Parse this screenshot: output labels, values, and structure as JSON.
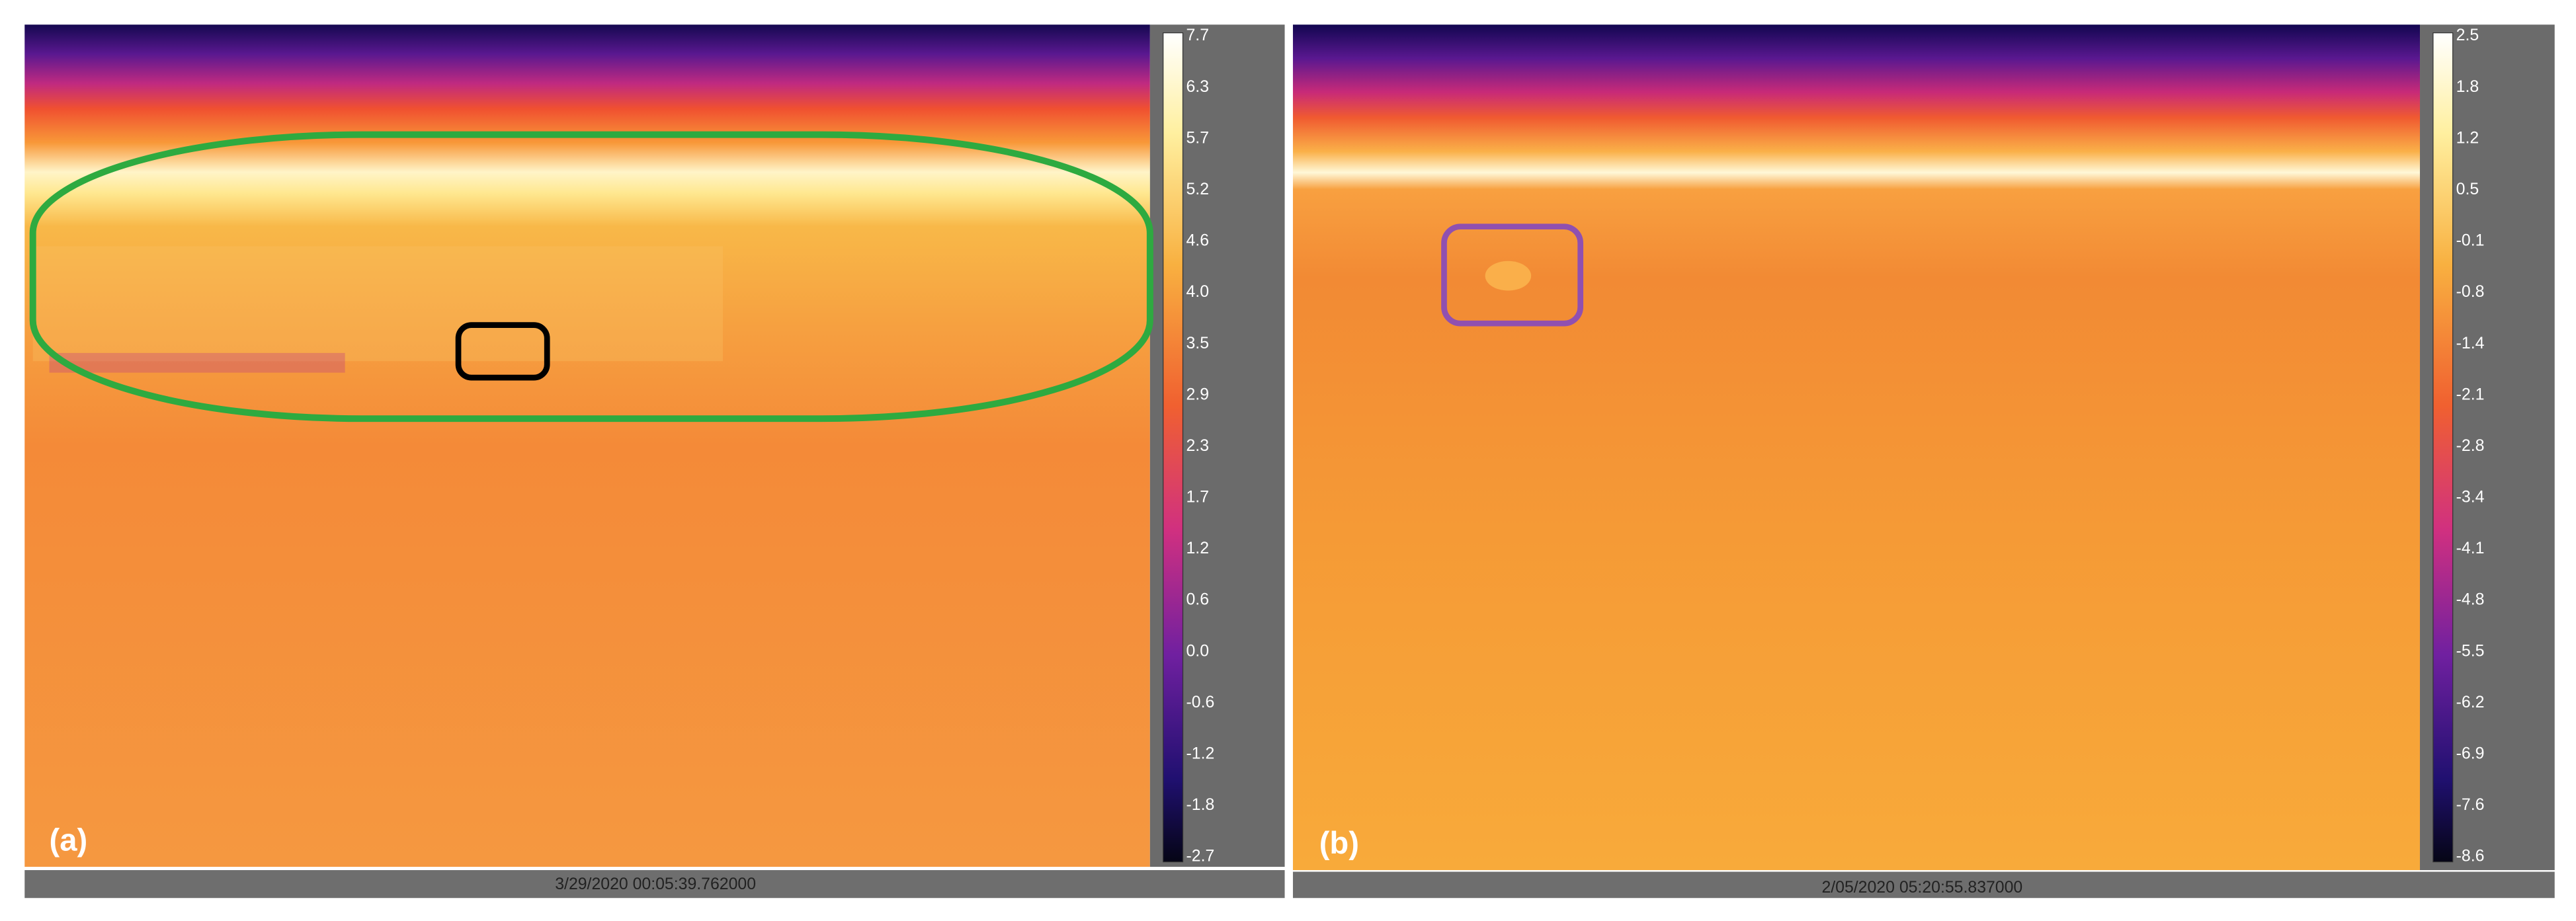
{
  "panels": [
    {
      "label": "(a)",
      "timestamp": "3/29/2020 00:05:39.762000",
      "colorbar_ticks": [
        "7.7",
        "6.3",
        "5.7",
        "5.2",
        "4.6",
        "4.0",
        "3.5",
        "2.9",
        "2.3",
        "1.7",
        "1.2",
        "0.6",
        "0.0",
        "-0.6",
        "-1.2",
        "-1.8",
        "-2.7"
      ]
    },
    {
      "label": "(b)",
      "timestamp": "2/05/2020 05:20:55.837000",
      "colorbar_ticks": [
        "2.5",
        "1.8",
        "1.2",
        "0.5",
        "-0.1",
        "-0.8",
        "-1.4",
        "-2.1",
        "-2.8",
        "-3.4",
        "-4.1",
        "-4.8",
        "-5.5",
        "-6.2",
        "-6.9",
        "-7.6",
        "-8.6"
      ]
    }
  ]
}
